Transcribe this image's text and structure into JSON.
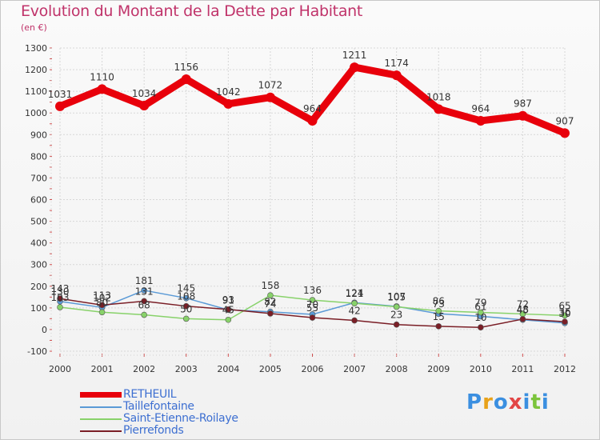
{
  "title": "Evolution du Montant de la Dette par Habitant",
  "unit": "(en €)",
  "logo": {
    "letters": [
      "P",
      "r",
      "o",
      "x",
      "i",
      "t",
      "i"
    ],
    "colors": [
      "#3b8fe0",
      "#e8a21a",
      "#3b8fe0",
      "#e24646",
      "#3b8fe0",
      "#7cc43c",
      "#3b8fe0"
    ]
  },
  "chart_data": {
    "type": "line",
    "x": [
      "2000",
      "2001",
      "2002",
      "2003",
      "2004",
      "2005",
      "2006",
      "2007",
      "2008",
      "2009",
      "2010",
      "2011",
      "2012"
    ],
    "ylim": [
      -100,
      1300
    ],
    "yticks": [
      "-100",
      "0",
      "100",
      "200",
      "300",
      "400",
      "500",
      "600",
      "700",
      "800",
      "900",
      "1000",
      "1100",
      "1200",
      "1300"
    ],
    "grid": true,
    "legend_position": "bottom-left",
    "series": [
      {
        "name": "RETHEUIL",
        "color": "#e8000b",
        "values": [
          1031,
          1110,
          1034,
          1156,
          1042,
          1072,
          964,
          1211,
          1174,
          1018,
          964,
          987,
          907
        ],
        "labels": [
          "1031",
          "1110",
          "1034",
          "1156",
          "1042",
          "1072",
          "964",
          "1211",
          "1174",
          "1018",
          "964",
          "987",
          "907"
        ]
      },
      {
        "name": "Taillefontaine",
        "color": "#5a9ad6",
        "values": [
          130,
          102,
          181,
          145,
          91,
          82,
          70,
          124,
          107,
          73,
          61,
          45,
          30
        ],
        "labels": [
          "130",
          "102",
          "181",
          "145",
          "91",
          "82",
          "70",
          "124",
          "107",
          "73",
          "61",
          "45",
          "30"
        ]
      },
      {
        "name": "Saint-Etienne-Roilaye",
        "color": "#88d26a",
        "values": [
          103,
          80,
          68,
          50,
          45,
          158,
          136,
          121,
          105,
          86,
          79,
          72,
          65
        ],
        "labels": [
          "103",
          "80",
          "68",
          "50",
          "45",
          "158",
          "136",
          "121",
          "105",
          "86",
          "79",
          "72",
          "65"
        ]
      },
      {
        "name": "Pierrefonds",
        "color": "#7a1e26",
        "values": [
          143,
          113,
          131,
          108,
          93,
          74,
          55,
          42,
          23,
          15,
          10,
          48,
          36
        ],
        "labels": [
          "143",
          "113",
          "131",
          "108",
          "93",
          "74",
          "55",
          "42",
          "23",
          "15",
          "10",
          "48",
          "36"
        ]
      }
    ]
  }
}
